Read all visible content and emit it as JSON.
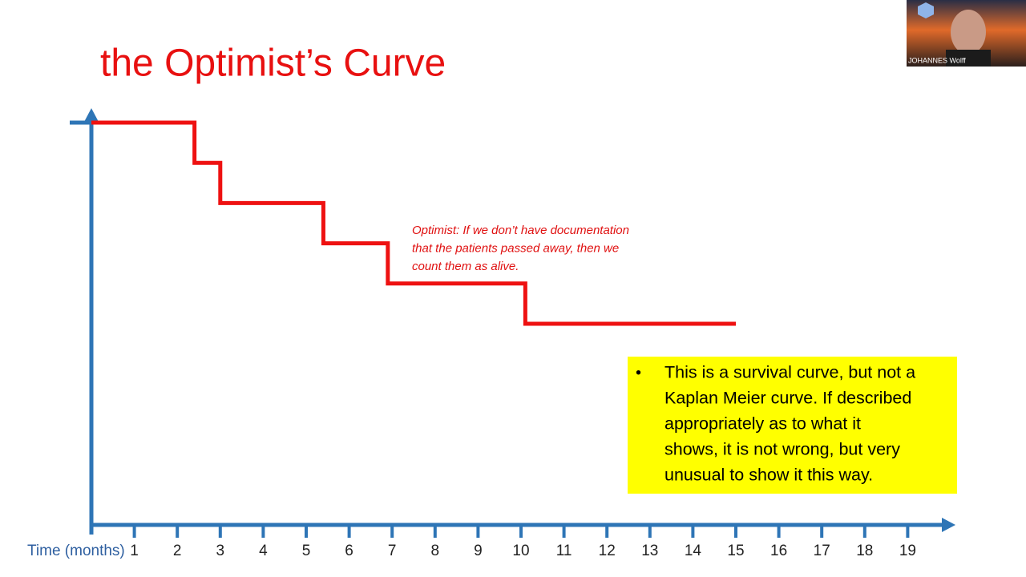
{
  "chart_data": {
    "type": "step",
    "title": "the Optimist’s Curve",
    "xlabel": "Time (months)",
    "x": [
      0,
      2.4,
      3,
      5.4,
      6.9,
      10.1,
      15
    ],
    "values": [
      1,
      0.9,
      0.8,
      0.7,
      0.6,
      0.5,
      0.5
    ],
    "color": "#ee1111",
    "axis_color": "#2e75b6",
    "xlim": [
      0,
      20
    ],
    "ylim": [
      0,
      1
    ],
    "xticks": [
      1,
      2,
      3,
      4,
      5,
      6,
      7,
      8,
      9,
      10,
      11,
      12,
      13,
      14,
      15,
      16,
      17,
      18,
      19
    ],
    "grid": false,
    "annotation": [
      "Optimist: If we don’t have documentation",
      "that the patients passed away, then we",
      "count them as alive."
    ],
    "note": {
      "bullet": "•",
      "lines": [
        "This is a survival curve, but not a",
        "Kaplan Meier curve. If described",
        "appropriately as to what it",
        "shows, it is not wrong, but very",
        "unusual to show it this way."
      ]
    }
  },
  "video": {
    "name": "JOHANNES Wolff"
  }
}
